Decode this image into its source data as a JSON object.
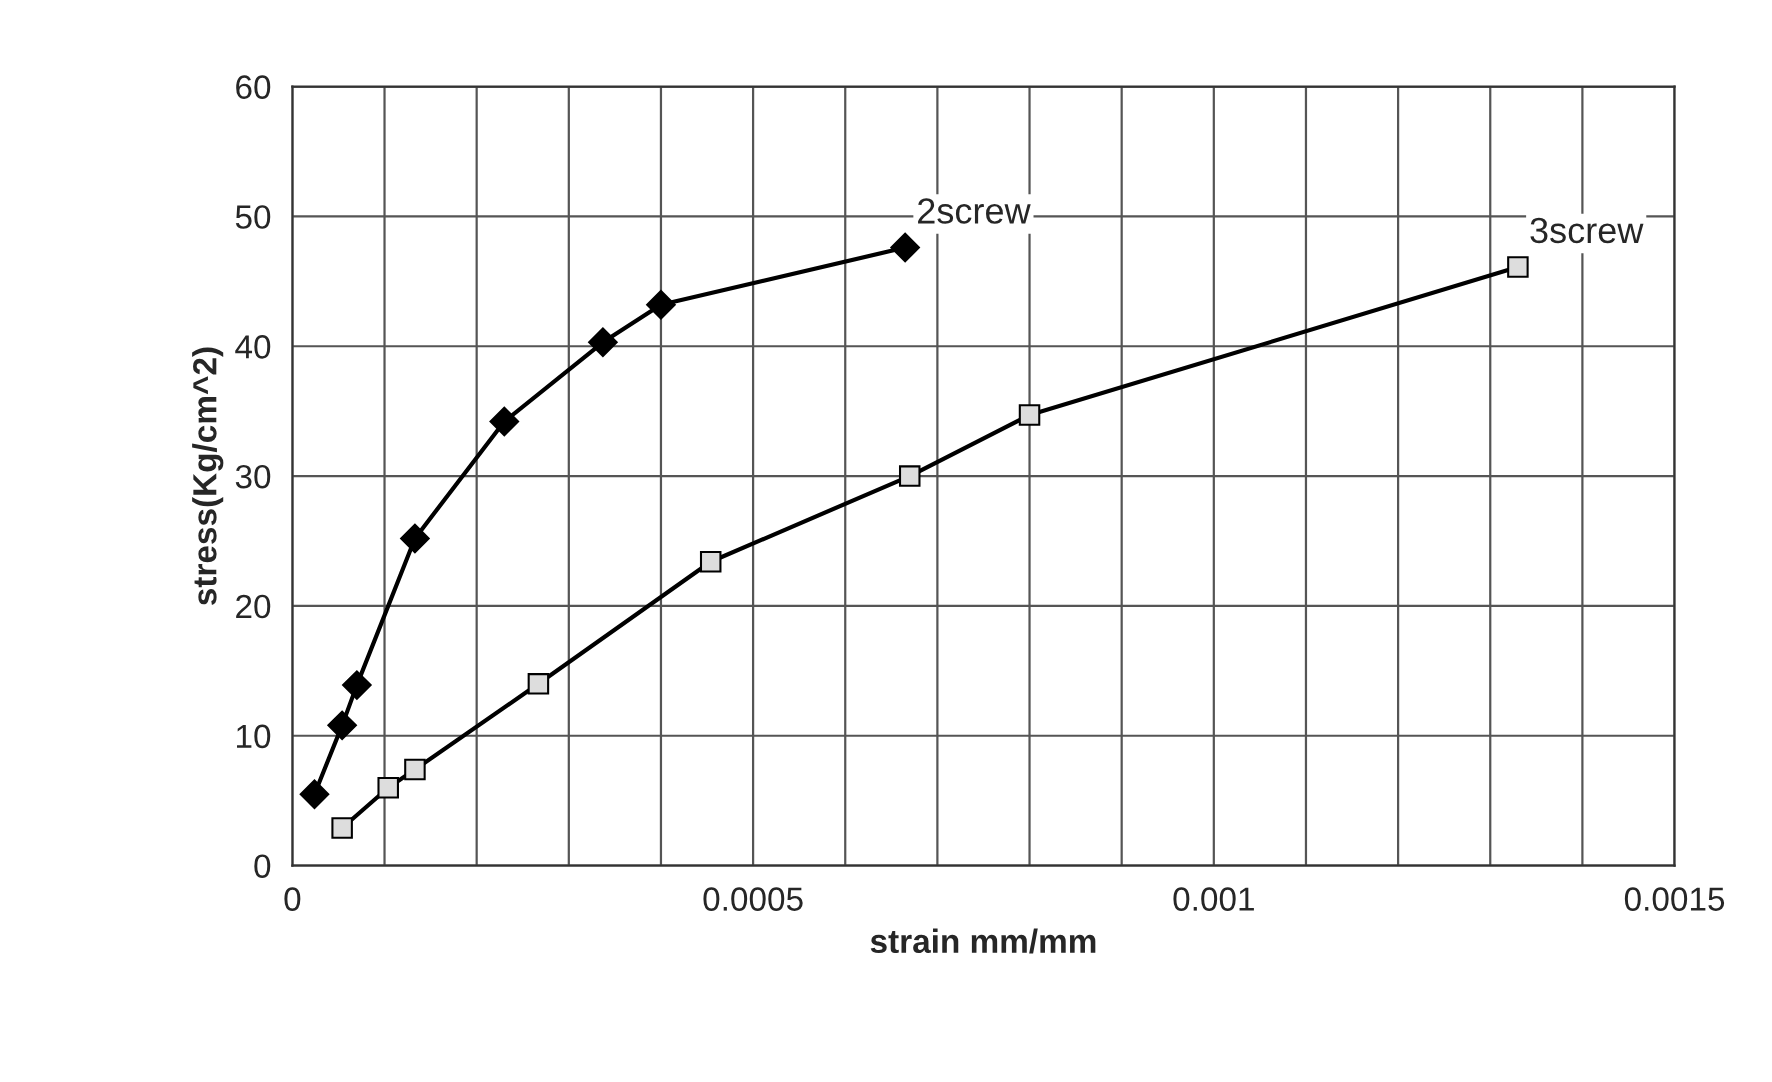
{
  "chart_data": {
    "type": "line",
    "xlabel": "strain mm/mm",
    "ylabel": "stress(Kg/cm^2)",
    "xlim": [
      0,
      0.0015
    ],
    "xticks": [
      0,
      0.0005,
      0.001,
      0.0015
    ],
    "ylim": [
      0,
      60
    ],
    "yticks": [
      0,
      10,
      20,
      30,
      40,
      50,
      60
    ],
    "grid": true,
    "legend": false,
    "series": [
      {
        "name": "2screw",
        "color": "#000000",
        "marker": "diamond",
        "x": [
          2.4e-05,
          5.4e-05,
          7e-05,
          0.000133,
          0.00023,
          0.000337,
          0.0004,
          0.000665
        ],
        "values": [
          5.5,
          10.8,
          13.9,
          25.2,
          34.2,
          40.3,
          43.2,
          47.6
        ]
      },
      {
        "name": "3screw",
        "color": "#000000",
        "marker": "square",
        "x": [
          5.4e-05,
          0.000104,
          0.000133,
          0.000267,
          0.000454,
          0.00067,
          0.0008,
          0.00133
        ],
        "values": [
          2.9,
          6.0,
          7.4,
          14.0,
          23.4,
          30.0,
          34.7,
          46.1
        ]
      }
    ]
  }
}
